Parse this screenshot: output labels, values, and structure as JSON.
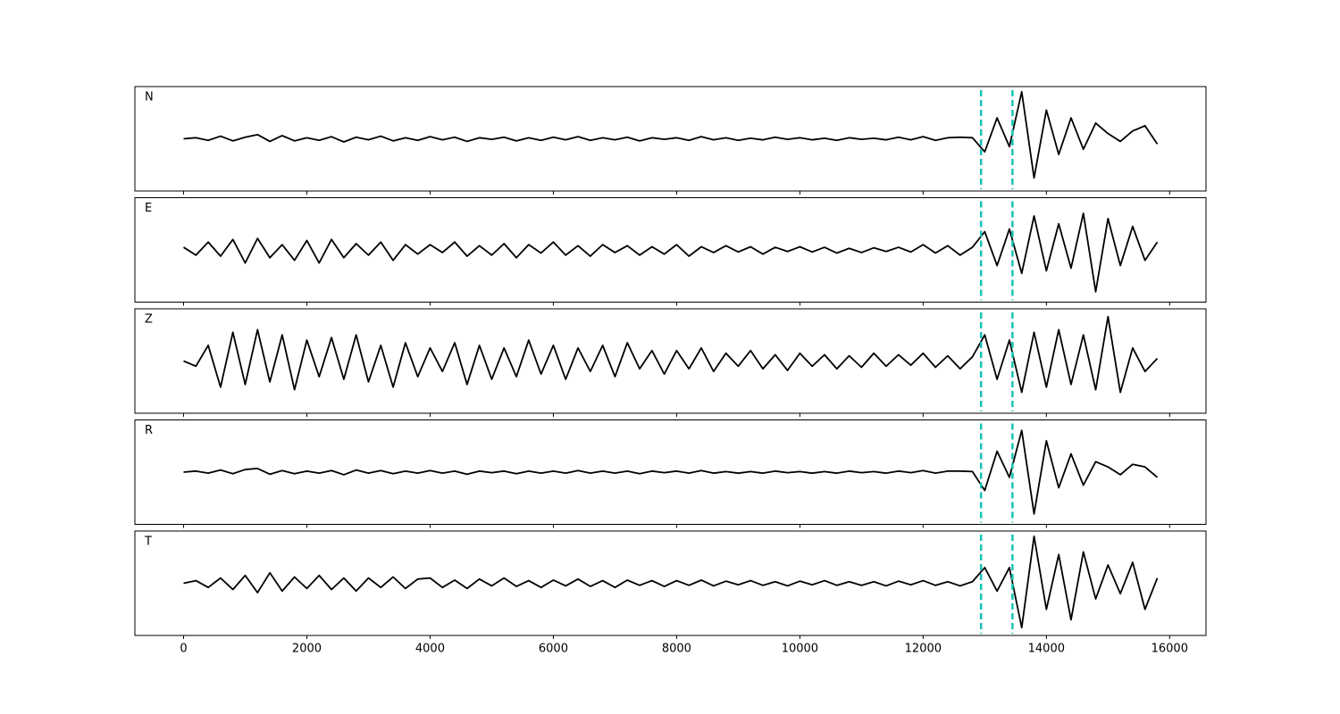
{
  "chart_data": {
    "type": "line",
    "layout": "stacked",
    "xlim": [
      -790,
      16590
    ],
    "ylim": [
      -1,
      1
    ],
    "xticks": [
      0,
      2000,
      4000,
      6000,
      8000,
      10000,
      12000,
      14000,
      16000
    ],
    "vlines": [
      12940,
      13450
    ],
    "vline_color": "#17c3b2",
    "x": [
      0,
      200,
      400,
      600,
      800,
      1000,
      1200,
      1400,
      1600,
      1800,
      2000,
      2200,
      2400,
      2600,
      2800,
      3000,
      3200,
      3400,
      3600,
      3800,
      4000,
      4200,
      4400,
      4600,
      4800,
      5000,
      5200,
      5400,
      5600,
      5800,
      6000,
      6200,
      6400,
      6600,
      6800,
      7000,
      7200,
      7400,
      7600,
      7800,
      8000,
      8200,
      8400,
      8600,
      8800,
      9000,
      9200,
      9400,
      9600,
      9800,
      10000,
      10200,
      10400,
      10600,
      10800,
      11000,
      11200,
      11400,
      11600,
      11800,
      12000,
      12200,
      12400,
      12600,
      12800,
      13000,
      13200,
      13400,
      13600,
      13800,
      14000,
      14200,
      14400,
      14600,
      14800,
      15000,
      15200,
      15400,
      15600,
      15800
    ],
    "series": [
      {
        "name": "N",
        "color": "#000000",
        "values": [
          0.0,
          0.02,
          -0.03,
          0.05,
          -0.04,
          0.03,
          0.08,
          -0.05,
          0.06,
          -0.04,
          0.02,
          -0.03,
          0.04,
          -0.06,
          0.03,
          -0.02,
          0.05,
          -0.04,
          0.02,
          -0.03,
          0.04,
          -0.02,
          0.03,
          -0.05,
          0.02,
          -0.01,
          0.03,
          -0.04,
          0.02,
          -0.03,
          0.03,
          -0.02,
          0.04,
          -0.03,
          0.02,
          -0.02,
          0.03,
          -0.04,
          0.02,
          -0.01,
          0.02,
          -0.03,
          0.04,
          -0.02,
          0.02,
          -0.03,
          0.01,
          -0.02,
          0.03,
          -0.01,
          0.02,
          -0.02,
          0.01,
          -0.03,
          0.02,
          -0.01,
          0.01,
          -0.02,
          0.03,
          -0.02,
          0.04,
          -0.03,
          0.02,
          0.03,
          0.02,
          -0.25,
          0.4,
          -0.15,
          0.9,
          -0.75,
          0.55,
          -0.3,
          0.4,
          -0.2,
          0.3,
          0.1,
          -0.05,
          0.15,
          0.25,
          -0.1
        ]
      },
      {
        "name": "E",
        "color": "#000000",
        "values": [
          0.05,
          -0.1,
          0.15,
          -0.12,
          0.2,
          -0.25,
          0.22,
          -0.15,
          0.1,
          -0.2,
          0.18,
          -0.25,
          0.2,
          -0.15,
          0.12,
          -0.1,
          0.15,
          -0.2,
          0.1,
          -0.08,
          0.1,
          -0.05,
          0.15,
          -0.12,
          0.08,
          -0.1,
          0.12,
          -0.15,
          0.1,
          -0.06,
          0.15,
          -0.1,
          0.08,
          -0.12,
          0.1,
          -0.05,
          0.08,
          -0.1,
          0.06,
          -0.08,
          0.1,
          -0.12,
          0.06,
          -0.05,
          0.08,
          -0.04,
          0.06,
          -0.08,
          0.05,
          -0.03,
          0.06,
          -0.04,
          0.05,
          -0.06,
          0.03,
          -0.05,
          0.04,
          -0.03,
          0.05,
          -0.04,
          0.1,
          -0.06,
          0.08,
          -0.1,
          0.05,
          0.35,
          -0.3,
          0.4,
          -0.45,
          0.65,
          -0.4,
          0.5,
          -0.35,
          0.7,
          -0.8,
          0.6,
          -0.3,
          0.45,
          -0.2,
          0.15
        ]
      },
      {
        "name": "Z",
        "color": "#000000",
        "values": [
          0.0,
          -0.1,
          0.3,
          -0.5,
          0.55,
          -0.45,
          0.6,
          -0.4,
          0.5,
          -0.55,
          0.4,
          -0.3,
          0.45,
          -0.35,
          0.5,
          -0.4,
          0.3,
          -0.5,
          0.35,
          -0.3,
          0.25,
          -0.2,
          0.35,
          -0.45,
          0.3,
          -0.35,
          0.25,
          -0.3,
          0.4,
          -0.25,
          0.3,
          -0.35,
          0.25,
          -0.2,
          0.3,
          -0.3,
          0.35,
          -0.15,
          0.2,
          -0.25,
          0.2,
          -0.15,
          0.25,
          -0.2,
          0.15,
          -0.1,
          0.2,
          -0.15,
          0.12,
          -0.18,
          0.15,
          -0.1,
          0.12,
          -0.15,
          0.1,
          -0.12,
          0.15,
          -0.1,
          0.12,
          -0.08,
          0.15,
          -0.12,
          0.1,
          -0.15,
          0.08,
          0.5,
          -0.35,
          0.4,
          -0.6,
          0.55,
          -0.5,
          0.6,
          -0.45,
          0.5,
          -0.55,
          0.85,
          -0.6,
          0.25,
          -0.2,
          0.05
        ]
      },
      {
        "name": "R",
        "color": "#000000",
        "values": [
          0.0,
          0.02,
          -0.02,
          0.04,
          -0.03,
          0.05,
          0.07,
          -0.04,
          0.03,
          -0.03,
          0.02,
          -0.02,
          0.03,
          -0.05,
          0.04,
          -0.02,
          0.03,
          -0.03,
          0.02,
          -0.02,
          0.03,
          -0.02,
          0.02,
          -0.04,
          0.02,
          -0.01,
          0.02,
          -0.03,
          0.02,
          -0.02,
          0.02,
          -0.02,
          0.03,
          -0.02,
          0.02,
          -0.02,
          0.02,
          -0.03,
          0.02,
          -0.01,
          0.02,
          -0.02,
          0.03,
          -0.02,
          0.01,
          -0.02,
          0.01,
          -0.02,
          0.02,
          -0.01,
          0.01,
          -0.02,
          0.01,
          -0.02,
          0.02,
          -0.01,
          0.01,
          -0.02,
          0.02,
          -0.01,
          0.03,
          -0.02,
          0.02,
          0.02,
          0.01,
          -0.35,
          0.4,
          -0.1,
          0.8,
          -0.8,
          0.6,
          -0.3,
          0.35,
          -0.25,
          0.2,
          0.1,
          -0.05,
          0.15,
          0.1,
          -0.1
        ]
      },
      {
        "name": "T",
        "color": "#000000",
        "values": [
          0.0,
          0.05,
          -0.08,
          0.1,
          -0.12,
          0.15,
          -0.18,
          0.2,
          -0.15,
          0.12,
          -0.1,
          0.15,
          -0.12,
          0.1,
          -0.15,
          0.1,
          -0.08,
          0.12,
          -0.1,
          0.08,
          0.1,
          -0.08,
          0.06,
          -0.1,
          0.08,
          -0.05,
          0.1,
          -0.06,
          0.05,
          -0.08,
          0.06,
          -0.05,
          0.08,
          -0.06,
          0.05,
          -0.08,
          0.06,
          -0.04,
          0.05,
          -0.06,
          0.05,
          -0.04,
          0.06,
          -0.05,
          0.04,
          -0.03,
          0.05,
          -0.04,
          0.03,
          -0.05,
          0.04,
          -0.03,
          0.05,
          -0.04,
          0.03,
          -0.04,
          0.03,
          -0.05,
          0.04,
          -0.03,
          0.05,
          -0.04,
          0.03,
          -0.05,
          0.03,
          0.3,
          -0.15,
          0.3,
          -0.85,
          0.9,
          -0.5,
          0.55,
          -0.7,
          0.6,
          -0.3,
          0.35,
          -0.2,
          0.4,
          -0.5,
          0.1
        ]
      }
    ]
  }
}
